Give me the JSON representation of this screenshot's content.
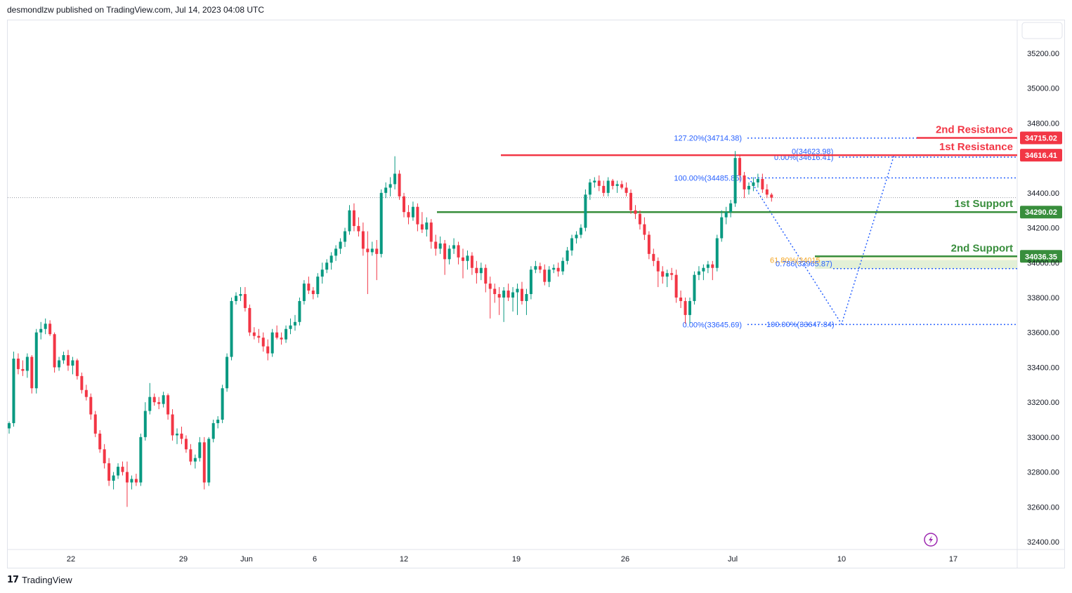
{
  "header": {
    "text": "desmondlzw published on TradingView.com, Jul 14, 2023 04:08 UTC"
  },
  "footer": {
    "logo": "17",
    "brand": "TradingView"
  },
  "colors": {
    "up": "#089981",
    "down": "#f23645",
    "resistance": "#f23645",
    "support": "#388e3c",
    "fib": "#2962ff",
    "fib_orange": "#f5a623",
    "grid": "#ffffff"
  },
  "chart_data": {
    "type": "candlestick",
    "y_axis": {
      "ticks": [
        35200,
        35000,
        34800,
        34400,
        34200,
        34000,
        33800,
        33600,
        33400,
        33200,
        33000,
        32800,
        32600,
        32400
      ],
      "tick_labels": [
        "35200.00",
        "35000.00",
        "34800.00",
        "34400.00",
        "34200.00",
        "34000.00",
        "33800.00",
        "33600.00",
        "33400.00",
        "33200.00",
        "33000.00",
        "32800.00",
        "32600.00",
        "32400.00"
      ],
      "range": [
        32300,
        35470
      ]
    },
    "x_axis": {
      "labels": [
        "22",
        "29",
        "Jun",
        "6",
        "12",
        "19",
        "26",
        "Jul",
        "10",
        "17"
      ]
    },
    "levels": [
      {
        "name": "2nd Resistance",
        "price": 34715.02,
        "label": "34715.02",
        "kind": "resistance"
      },
      {
        "name": "1st Resistance",
        "price": 34616.41,
        "label": "34616.41",
        "kind": "resistance"
      },
      {
        "name": "1st Support",
        "price": 34290.02,
        "label": "34290.02",
        "kind": "support"
      },
      {
        "name": "2nd Support",
        "price": 34036.35,
        "label": "34036.35",
        "kind": "support"
      }
    ],
    "fib_labels": [
      {
        "text": "127.20%(34714.38)",
        "price": 34714.38
      },
      {
        "text": "0(34623.98)",
        "price": 34639
      },
      {
        "text": "0.00%(34616.41)",
        "price": 34605
      },
      {
        "text": "100.00%(34485.85)",
        "price": 34485.85
      },
      {
        "text": "61.80%(34015",
        "price": 34015
      },
      {
        "text": "0.786(33965.87)",
        "price": 33995
      },
      {
        "text": "0.00%(33645.69)",
        "price": 33645.69
      },
      {
        "text": "100.00%(33647.84)",
        "price": 33647.84
      }
    ],
    "last_price": 34373,
    "candles": [
      [
        33050,
        33090,
        33020,
        33080
      ],
      [
        33080,
        33490,
        33060,
        33450
      ],
      [
        33450,
        33480,
        33360,
        33390
      ],
      [
        33390,
        33440,
        33350,
        33380
      ],
      [
        33380,
        33480,
        33340,
        33460
      ],
      [
        33460,
        33470,
        33250,
        33280
      ],
      [
        33280,
        33620,
        33250,
        33600
      ],
      [
        33600,
        33660,
        33560,
        33620
      ],
      [
        33620,
        33680,
        33590,
        33650
      ],
      [
        33650,
        33670,
        33580,
        33590
      ],
      [
        33590,
        33600,
        33370,
        33400
      ],
      [
        33400,
        33460,
        33380,
        33440
      ],
      [
        33440,
        33490,
        33420,
        33470
      ],
      [
        33470,
        33500,
        33380,
        33410
      ],
      [
        33410,
        33460,
        33360,
        33440
      ],
      [
        33440,
        33450,
        33330,
        33350
      ],
      [
        33350,
        33370,
        33250,
        33270
      ],
      [
        33270,
        33300,
        33210,
        33230
      ],
      [
        33230,
        33250,
        33100,
        33130
      ],
      [
        33130,
        33150,
        33000,
        33020
      ],
      [
        33020,
        33040,
        32910,
        32930
      ],
      [
        32930,
        32960,
        32820,
        32850
      ],
      [
        32850,
        32880,
        32720,
        32750
      ],
      [
        32750,
        32800,
        32700,
        32780
      ],
      [
        32780,
        32850,
        32760,
        32830
      ],
      [
        32830,
        32860,
        32780,
        32800
      ],
      [
        32800,
        32860,
        32600,
        32740
      ],
      [
        32740,
        32780,
        32700,
        32760
      ],
      [
        32760,
        32790,
        32720,
        32740
      ],
      [
        32740,
        33020,
        32720,
        33000
      ],
      [
        33000,
        33200,
        32980,
        33150
      ],
      [
        33150,
        33310,
        33130,
        33230
      ],
      [
        33230,
        33250,
        33180,
        33200
      ],
      [
        33200,
        33230,
        33160,
        33190
      ],
      [
        33190,
        33260,
        33170,
        33240
      ],
      [
        33240,
        33250,
        33100,
        33130
      ],
      [
        33130,
        33160,
        32980,
        33010
      ],
      [
        33010,
        33050,
        32960,
        33020
      ],
      [
        33020,
        33060,
        32960,
        32990
      ],
      [
        32990,
        33010,
        32910,
        32930
      ],
      [
        32930,
        32960,
        32840,
        32860
      ],
      [
        32860,
        32900,
        32820,
        32880
      ],
      [
        32880,
        33000,
        32860,
        32970
      ],
      [
        32970,
        33000,
        32700,
        32740
      ],
      [
        32740,
        33000,
        32720,
        32990
      ],
      [
        32990,
        33100,
        32970,
        33080
      ],
      [
        33080,
        33120,
        33050,
        33100
      ],
      [
        33100,
        33300,
        33080,
        33280
      ],
      [
        33280,
        33480,
        33260,
        33460
      ],
      [
        33460,
        33800,
        33440,
        33780
      ],
      [
        33780,
        33830,
        33760,
        33810
      ],
      [
        33810,
        33860,
        33780,
        33820
      ],
      [
        33820,
        33860,
        33720,
        33740
      ],
      [
        33740,
        33760,
        33580,
        33600
      ],
      [
        33600,
        33630,
        33560,
        33580
      ],
      [
        33580,
        33620,
        33540,
        33570
      ],
      [
        33570,
        33600,
        33490,
        33520
      ],
      [
        33520,
        33560,
        33440,
        33480
      ],
      [
        33480,
        33620,
        33460,
        33600
      ],
      [
        33600,
        33640,
        33560,
        33570
      ],
      [
        33570,
        33600,
        33530,
        33560
      ],
      [
        33560,
        33640,
        33540,
        33620
      ],
      [
        33620,
        33680,
        33590,
        33640
      ],
      [
        33640,
        33700,
        33610,
        33660
      ],
      [
        33660,
        33800,
        33640,
        33780
      ],
      [
        33780,
        33900,
        33760,
        33880
      ],
      [
        33880,
        33920,
        33820,
        33840
      ],
      [
        33840,
        33860,
        33790,
        33820
      ],
      [
        33820,
        33940,
        33800,
        33920
      ],
      [
        33920,
        34000,
        33880,
        33960
      ],
      [
        33960,
        34020,
        33940,
        34000
      ],
      [
        34000,
        34060,
        33960,
        34040
      ],
      [
        34040,
        34100,
        34010,
        34080
      ],
      [
        34080,
        34140,
        34050,
        34120
      ],
      [
        34120,
        34200,
        34090,
        34180
      ],
      [
        34180,
        34330,
        34160,
        34300
      ],
      [
        34300,
        34340,
        34180,
        34210
      ],
      [
        34210,
        34260,
        34150,
        34180
      ],
      [
        34180,
        34230,
        34040,
        34080
      ],
      [
        34080,
        34180,
        33820,
        34060
      ],
      [
        34060,
        34120,
        34040,
        34080
      ],
      [
        34080,
        34130,
        33900,
        34050
      ],
      [
        34050,
        34420,
        34030,
        34400
      ],
      [
        34400,
        34460,
        34370,
        34430
      ],
      [
        34430,
        34490,
        34380,
        34450
      ],
      [
        34450,
        34610,
        34420,
        34510
      ],
      [
        34510,
        34530,
        34360,
        34380
      ],
      [
        34380,
        34400,
        34260,
        34290
      ],
      [
        34290,
        34330,
        34220,
        34260
      ],
      [
        34260,
        34350,
        34240,
        34320
      ],
      [
        34320,
        34340,
        34180,
        34220
      ],
      [
        34220,
        34290,
        34170,
        34190
      ],
      [
        34190,
        34260,
        34150,
        34230
      ],
      [
        34230,
        34250,
        34080,
        34120
      ],
      [
        34120,
        34160,
        34040,
        34080
      ],
      [
        34080,
        34150,
        34050,
        34110
      ],
      [
        34110,
        34130,
        33930,
        34020
      ],
      [
        34020,
        34100,
        33990,
        34080
      ],
      [
        34080,
        34140,
        34050,
        34100
      ],
      [
        34100,
        34120,
        33990,
        34030
      ],
      [
        34030,
        34080,
        33910,
        34010
      ],
      [
        34010,
        34070,
        33960,
        34040
      ],
      [
        34040,
        34060,
        33930,
        33970
      ],
      [
        33970,
        34010,
        33880,
        33940
      ],
      [
        33940,
        34000,
        33900,
        33970
      ],
      [
        33970,
        33990,
        33830,
        33880
      ],
      [
        33880,
        33920,
        33680,
        33850
      ],
      [
        33850,
        33880,
        33770,
        33820
      ],
      [
        33820,
        33860,
        33700,
        33800
      ],
      [
        33800,
        33860,
        33660,
        33840
      ],
      [
        33840,
        33880,
        33780,
        33800
      ],
      [
        33800,
        33860,
        33720,
        33830
      ],
      [
        33830,
        33880,
        33700,
        33850
      ],
      [
        33850,
        33890,
        33760,
        33780
      ],
      [
        33780,
        33850,
        33700,
        33820
      ],
      [
        33820,
        33980,
        33790,
        33960
      ],
      [
        33960,
        34010,
        33940,
        33980
      ],
      [
        33980,
        34000,
        33940,
        33960
      ],
      [
        33960,
        33990,
        33870,
        33890
      ],
      [
        33890,
        33980,
        33860,
        33960
      ],
      [
        33960,
        33990,
        33940,
        33970
      ],
      [
        33970,
        34000,
        33920,
        33950
      ],
      [
        33950,
        34030,
        33930,
        34010
      ],
      [
        34010,
        34090,
        33990,
        34070
      ],
      [
        34070,
        34160,
        34040,
        34140
      ],
      [
        34140,
        34180,
        34110,
        34160
      ],
      [
        34160,
        34220,
        34140,
        34200
      ],
      [
        34200,
        34420,
        34180,
        34390
      ],
      [
        34390,
        34480,
        34360,
        34460
      ],
      [
        34460,
        34490,
        34430,
        34470
      ],
      [
        34470,
        34500,
        34410,
        34440
      ],
      [
        34440,
        34470,
        34380,
        34400
      ],
      [
        34400,
        34490,
        34380,
        34470
      ],
      [
        34470,
        34480,
        34420,
        34440
      ],
      [
        34440,
        34470,
        34400,
        34450
      ],
      [
        34450,
        34470,
        34420,
        34430
      ],
      [
        34430,
        34460,
        34380,
        34400
      ],
      [
        34400,
        34420,
        34280,
        34300
      ],
      [
        34300,
        34330,
        34250,
        34280
      ],
      [
        34280,
        34300,
        34190,
        34220
      ],
      [
        34220,
        34260,
        34130,
        34160
      ],
      [
        34160,
        34180,
        34020,
        34050
      ],
      [
        34050,
        34080,
        33980,
        34010
      ],
      [
        34010,
        34030,
        33860,
        33950
      ],
      [
        33950,
        33980,
        33880,
        33920
      ],
      [
        33920,
        33960,
        33860,
        33940
      ],
      [
        33940,
        33970,
        33900,
        33930
      ],
      [
        33930,
        33960,
        33770,
        33800
      ],
      [
        33800,
        33840,
        33740,
        33780
      ],
      [
        33780,
        33800,
        33650,
        33700
      ],
      [
        33700,
        33800,
        33648,
        33780
      ],
      [
        33780,
        33950,
        33760,
        33930
      ],
      [
        33930,
        33980,
        33900,
        33950
      ],
      [
        33950,
        33990,
        33900,
        33970
      ],
      [
        33970,
        34010,
        33940,
        33990
      ],
      [
        33990,
        34010,
        33900,
        33970
      ],
      [
        33970,
        34160,
        33950,
        34140
      ],
      [
        34140,
        34300,
        34120,
        34260
      ],
      [
        34260,
        34320,
        34220,
        34290
      ],
      [
        34290,
        34360,
        34260,
        34340
      ],
      [
        34340,
        34640,
        34320,
        34600
      ],
      [
        34600,
        34620,
        34470,
        34500
      ],
      [
        34500,
        34520,
        34370,
        34420
      ],
      [
        34420,
        34460,
        34390,
        34440
      ],
      [
        34440,
        34490,
        34410,
        34460
      ],
      [
        34460,
        34510,
        34430,
        34480
      ],
      [
        34480,
        34510,
        34400,
        34420
      ],
      [
        34420,
        34450,
        34370,
        34390
      ],
      [
        34390,
        34400,
        34350,
        34373
      ]
    ]
  }
}
